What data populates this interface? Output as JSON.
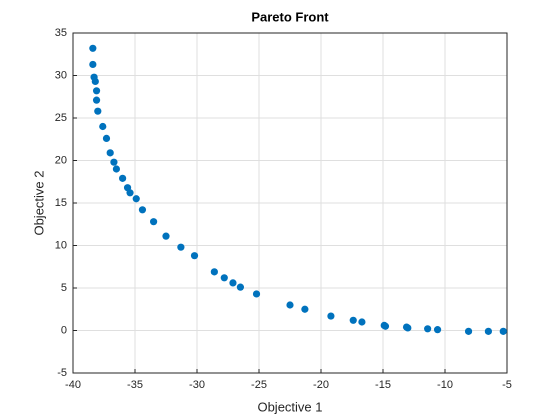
{
  "chart_data": {
    "type": "scatter",
    "title": "Pareto Front",
    "x_label": "Objective 1",
    "y_label": "Objective 2",
    "series": [
      {
        "color": "#0072bd",
        "x": [
          -38.4,
          -38.4,
          -38.3,
          -38.2,
          -38.1,
          -38.1,
          -38.0,
          -37.6,
          -37.3,
          -37.0,
          -36.7,
          -36.5,
          -36.0,
          -35.6,
          -35.4,
          -34.9,
          -34.4,
          -33.5,
          -32.5,
          -31.3,
          -30.2,
          -28.6,
          -27.8,
          -27.1,
          -26.5,
          -25.2,
          -22.5,
          -21.3,
          -19.2,
          -17.4,
          -16.7,
          -14.9,
          -14.8,
          -13.1,
          -13.0,
          -11.4,
          -10.6,
          -8.1,
          -6.5,
          -5.3
        ],
        "y": [
          33.2,
          31.3,
          29.8,
          29.3,
          28.2,
          27.1,
          25.8,
          24.0,
          22.6,
          20.9,
          19.8,
          19.0,
          17.9,
          16.8,
          16.2,
          15.5,
          14.2,
          12.8,
          11.1,
          9.8,
          8.8,
          6.9,
          6.2,
          5.6,
          5.1,
          4.3,
          3.0,
          2.5,
          1.7,
          1.2,
          1.0,
          0.6,
          0.5,
          0.4,
          0.3,
          0.2,
          0.1,
          -0.1,
          -0.1,
          -0.1
        ]
      }
    ],
    "xlim": [
      -40,
      -5
    ],
    "ylim": [
      -5,
      35
    ],
    "xticks": [
      -40,
      -35,
      -30,
      -25,
      -20,
      -15,
      -10,
      -5
    ],
    "yticks": [
      -5,
      0,
      5,
      10,
      15,
      20,
      25,
      30,
      35
    ],
    "grid": true
  }
}
